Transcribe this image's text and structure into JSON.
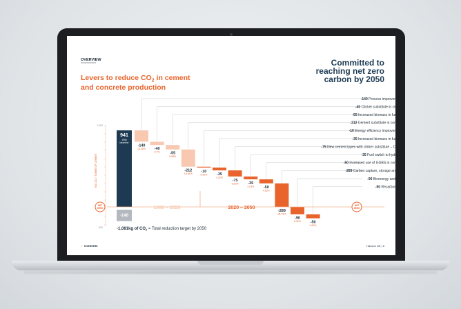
{
  "slide": {
    "section": "OVERVIEW",
    "title_line1": "Levers to reduce CO",
    "title_sub": "2",
    "title_line1_end": " in cement",
    "title_line2": "and concrete production",
    "headline_line1": "Committed to",
    "headline_line2": "reaching net zero",
    "headline_line3": "carbon by 2050",
    "footer_left": "Contents",
    "footer_right": "Hanson UK | 5",
    "colors": {
      "navy": "#1d3a52",
      "orange": "#e8642c",
      "peach": "#f8c9b0",
      "divider": "#f3b08e",
      "text": "#1d2b36"
    }
  },
  "chart_data": {
    "type": "waterfall",
    "ylabel": "KG CO2 / TONNE OF CEMENT",
    "yticks": [
      "1,000",
      "0",
      "-200"
    ],
    "ylim": [
      -200,
      1000
    ],
    "baseline": {
      "value": 941,
      "label": "941",
      "sublabel1": "1990",
      "sublabel2": "baseline"
    },
    "net_zero_badge": {
      "line1": "NET",
      "line2": "ZERO"
    },
    "residual": {
      "value": -140,
      "label": "-140"
    },
    "period_labels": {
      "first": "1990 – 2020",
      "second": "2020 – 2050"
    },
    "total": {
      "prefix": "-1,081kg of CO",
      "sub": "2",
      "suffix": " = Total reduction target by 2050"
    },
    "steps": [
      {
        "value": -140,
        "label": "-140",
        "pct": "12.95%",
        "period": "1990-2020"
      },
      {
        "value": -40,
        "label": "-40",
        "pct": "3.7%",
        "period": "1990-2020"
      },
      {
        "value": -55,
        "label": "-55",
        "pct": "5.08%",
        "period": "1990-2020"
      },
      {
        "value": -212,
        "label": "-212",
        "pct": "19.61%",
        "period": "1990-2020"
      },
      {
        "value": -10,
        "label": "-10",
        "pct": "0.92%",
        "period": "2020-2050"
      },
      {
        "value": -35,
        "label": "-35",
        "pct": "3.23%",
        "period": "2020-2050"
      },
      {
        "value": -75,
        "label": "-75",
        "pct": "6.93%",
        "period": "2020-2050"
      },
      {
        "value": -35,
        "label": "-35",
        "pct": "3.23%",
        "period": "2020-2050"
      },
      {
        "value": -50,
        "label": "-50",
        "pct": "4.62%",
        "period": "2020-2050"
      },
      {
        "value": -289,
        "label": "-289",
        "pct": "26.73%",
        "period": "2020-2050"
      },
      {
        "value": -90,
        "label": "-90",
        "pct": "8.32%",
        "period": "2020-2050"
      },
      {
        "value": -50,
        "label": "-50",
        "pct": "4.62%",
        "period": "2020-2050"
      }
    ],
    "legend_items": [
      {
        "value": "-140",
        "text": "Process improvements"
      },
      {
        "value": "-40",
        "text": "Clinker substitute in cement"
      },
      {
        "value": "-55",
        "text": "Increased biomass in fuel mix"
      },
      {
        "value": "-212",
        "text": "Cement substitute in concrete"
      },
      {
        "value": "-10",
        "text": "Energy efficiency improvements"
      },
      {
        "value": "-35",
        "text": "Increased biomass in fuel mix"
      },
      {
        "value": "-75",
        "text": "New cement types with clinker substitute – CEM II"
      },
      {
        "value": "-35",
        "text": "Fuel switch to hydrogen"
      },
      {
        "value": "-50",
        "text": "Increased use of GGBS in concrete"
      },
      {
        "value": "-289",
        "text": "Carbon capture, storage and use"
      },
      {
        "value": "-90",
        "text": "Bioenergy and CCS"
      },
      {
        "value": "-50",
        "text": "Recarbonation"
      }
    ]
  }
}
